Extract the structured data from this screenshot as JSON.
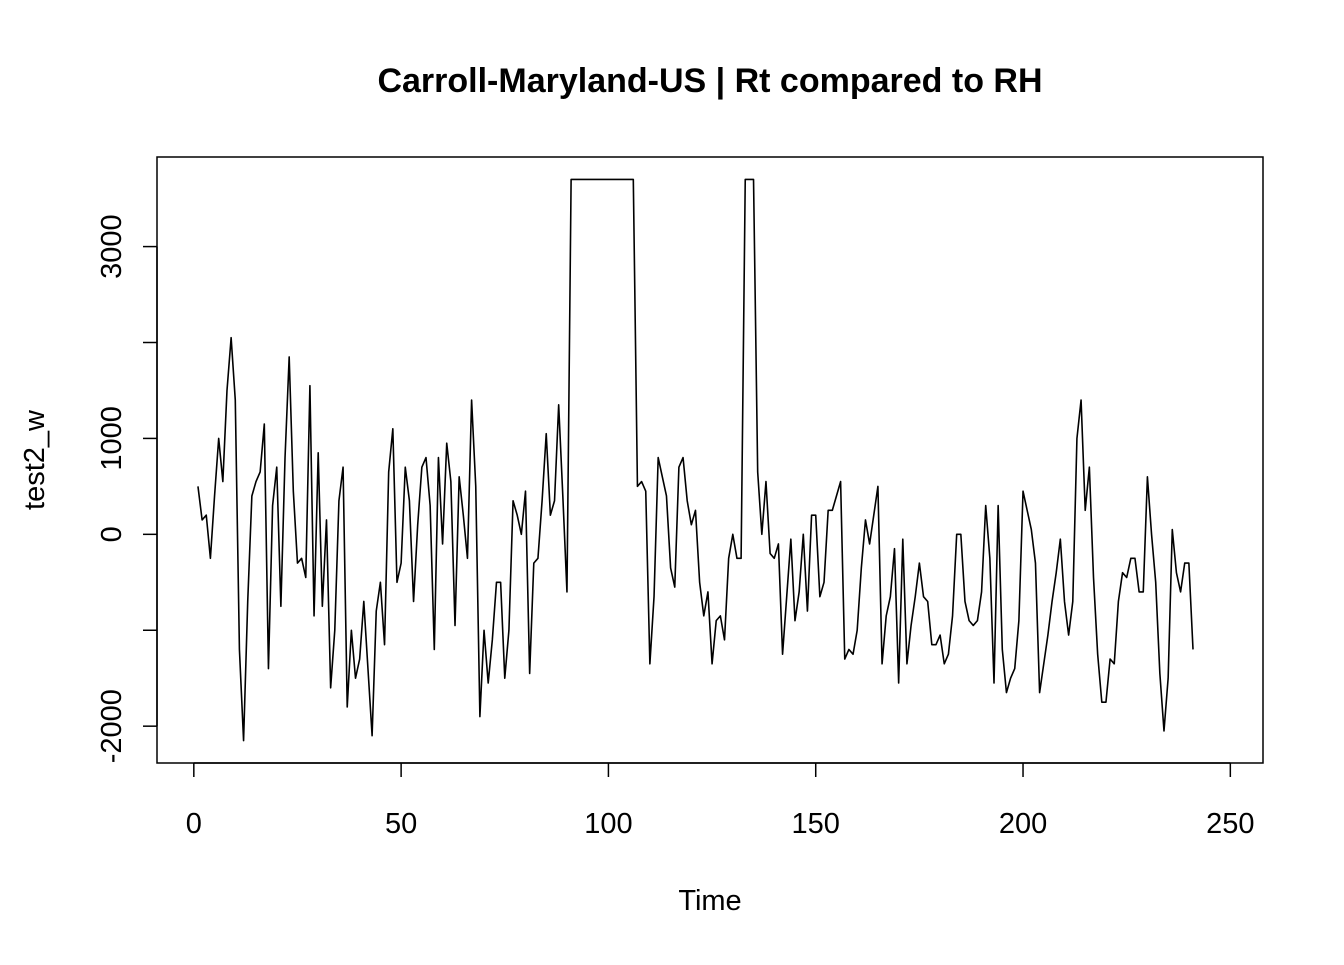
{
  "chart_data": {
    "type": "line",
    "title": "Carroll-Maryland-US | Rt compared to RH",
    "xlabel": "Time",
    "ylabel": "test2_w",
    "xlim": [
      1,
      248
    ],
    "ylim": [
      -2150,
      3700
    ],
    "x_ticks": [
      0,
      50,
      100,
      150,
      200,
      250
    ],
    "x_tick_labels": [
      "0",
      "50",
      "100",
      "150",
      "200",
      "250"
    ],
    "y_ticks": [
      -2000,
      -1000,
      0,
      1000,
      2000,
      3000
    ],
    "y_tick_labels": [
      "-2000",
      "",
      "0",
      "1000",
      "",
      "3000"
    ],
    "grid": false,
    "legend": "none",
    "line_color": "#000000",
    "series": [
      {
        "x_start": 1,
        "values": [
          500,
          150,
          200,
          -250,
          400,
          1000,
          550,
          1500,
          2050,
          1400,
          -1200,
          -2150,
          -700,
          400,
          550,
          650,
          1150,
          -1400,
          300,
          700,
          -750,
          800,
          1850,
          450,
          -300,
          -250,
          -450,
          1550,
          -850,
          850,
          -750,
          150,
          -1600,
          -1000,
          350,
          700,
          -1800,
          -1000,
          -1500,
          -1300,
          -700,
          -1400,
          -2100,
          -800,
          -500,
          -1150,
          650,
          1100,
          -500,
          -300,
          700,
          350,
          -700,
          100,
          700,
          800,
          300,
          -1200,
          800,
          -100,
          950,
          550,
          -950,
          600,
          200,
          -250,
          1400,
          500,
          -1900,
          -1000,
          -1550,
          -1100,
          -500,
          -500,
          -1500,
          -1000,
          350,
          200,
          0,
          450,
          -1450,
          -300,
          -250,
          350,
          1050,
          200,
          350,
          1350,
          400,
          -600,
          3700,
          3700,
          3700,
          3700,
          3700,
          3700,
          3700,
          3700,
          3700,
          3700,
          3700,
          3700,
          3700,
          3700,
          3700,
          3700,
          500,
          550,
          450,
          -1350,
          -650,
          800,
          600,
          400,
          -350,
          -550,
          700,
          800,
          350,
          100,
          250,
          -500,
          -850,
          -600,
          -1350,
          -900,
          -850,
          -1100,
          -250,
          0,
          -250,
          -250,
          3700,
          3700,
          3700,
          650,
          0,
          550,
          -200,
          -250,
          -100,
          -1250,
          -650,
          -50,
          -900,
          -600,
          0,
          -800,
          200,
          200,
          -650,
          -500,
          250,
          250,
          400,
          550,
          -1300,
          -1200,
          -1250,
          -1000,
          -350,
          150,
          -100,
          200,
          500,
          -1350,
          -850,
          -650,
          -150,
          -1550,
          -50,
          -1350,
          -950,
          -650,
          -300,
          -650,
          -700,
          -1150,
          -1150,
          -1050,
          -1350,
          -1250,
          -850,
          0,
          0,
          -700,
          -900,
          -950,
          -900,
          -600,
          300,
          -250,
          -1550,
          300,
          -1200,
          -1650,
          -1500,
          -1400,
          -900,
          450,
          250,
          50,
          -300,
          -1650,
          -1350,
          -1050,
          -700,
          -400,
          -50,
          -700,
          -1050,
          -700,
          1000,
          1400,
          250,
          700,
          -450,
          -1250,
          -1750,
          -1750,
          -1300,
          -1350,
          -700,
          -400,
          -450,
          -250,
          -250,
          -600,
          -600,
          600,
          0,
          -500,
          -1450,
          -2050,
          -1500,
          50,
          -400,
          -600,
          -300,
          -300,
          -1200
        ]
      }
    ]
  }
}
